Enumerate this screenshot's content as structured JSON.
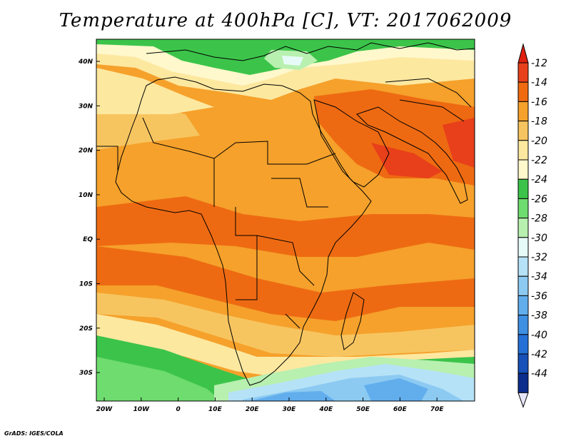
{
  "title": "Temperature at 400hPa [C], VT: 2017062009",
  "credit": "GrADS: IGES/COLA",
  "map": {
    "lon_labels": [
      "20W",
      "10W",
      "0",
      "10E",
      "20E",
      "30E",
      "40E",
      "50E",
      "60E",
      "70E"
    ],
    "lat_labels": [
      "40N",
      "30N",
      "20N",
      "10N",
      "EQ",
      "10S",
      "20S",
      "30S"
    ]
  },
  "colorbar": {
    "labels": [
      "-12",
      "-14",
      "-16",
      "-18",
      "-20",
      "-22",
      "-24",
      "-26",
      "-28",
      "-30",
      "-32",
      "-34",
      "-36",
      "-38",
      "-40",
      "-42",
      "-44"
    ],
    "colors": [
      "#e8401a",
      "#f06a10",
      "#f5a12b",
      "#f7c560",
      "#fde8a0",
      "#fff8cc",
      "#3cc44a",
      "#6fdc6f",
      "#b8f0b0",
      "#e6fbf7",
      "#b6e2f7",
      "#8ccaf2",
      "#62aeed",
      "#3e90e2",
      "#2470d6",
      "#1750b8",
      "#0c2d8c"
    ],
    "arrow_top_color": "#e02010",
    "arrow_bottom_color": "#e6e6fa"
  },
  "palette": {
    "fill_hot": "#ee6a12",
    "fill_orange": "#f5a12b",
    "fill_light_orange": "#f7c560",
    "fill_pale": "#fde8a0",
    "fill_cream": "#fff8cc",
    "fill_green": "#3cc44a",
    "fill_mid_green": "#6fdc6f",
    "fill_light_green": "#b8f0b0",
    "fill_pale_cyan": "#e6fbf7",
    "fill_light_blue": "#b6e2f7",
    "fill_blue": "#8ccaf2",
    "fill_deep_blue": "#62aeed",
    "fill_hottest": "#e8401a"
  }
}
